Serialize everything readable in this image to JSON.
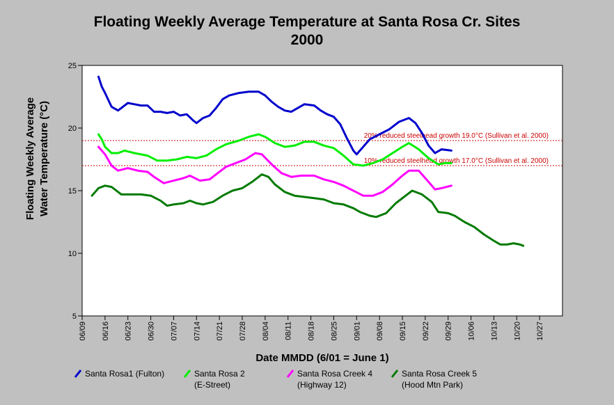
{
  "chart_data": {
    "type": "line",
    "title": "Floating Weekly Average Temperature at Santa Rosa Cr. Sites",
    "subtitle": "2000",
    "xlabel": "Date MMDD (6/01 = June 1)",
    "ylabel": [
      "Floating Weekly Average",
      "Water Temperature (°C)"
    ],
    "ylim": [
      5,
      25
    ],
    "xlim": [
      "06/09",
      "10/27"
    ],
    "yticks": [
      5,
      10,
      15,
      20,
      25
    ],
    "x_tick_labels": [
      "06/09",
      "06/16",
      "06/23",
      "06/30",
      "07/07",
      "07/14",
      "07/21",
      "07/28",
      "08/04",
      "08/11",
      "08/18",
      "08/25",
      "09/01",
      "09/08",
      "09/15",
      "09/22",
      "09/29",
      "10/06",
      "10/13",
      "10/20",
      "10/27"
    ],
    "grid": false,
    "legend_position": "bottom",
    "reference_lines": [
      {
        "y": 19.0,
        "label": "20% reduced steelhead growth 19.0°C (Sullivan et al. 2000)",
        "color": "#cc0000"
      },
      {
        "y": 17.0,
        "label": "10% reduced steelhead growth 17.0°C (Sullivan et al. 2000)",
        "color": "#cc0000"
      }
    ],
    "series": [
      {
        "name": "Santa Rosa1 (Fulton)",
        "color": "#0000cc",
        "points": [
          [
            "06/14",
            24.1
          ],
          [
            "06/15",
            23.3
          ],
          [
            "06/16",
            22.8
          ],
          [
            "06/18",
            21.7
          ],
          [
            "06/20",
            21.4
          ],
          [
            "06/21",
            21.6
          ],
          [
            "06/23",
            22.0
          ],
          [
            "06/25",
            21.9
          ],
          [
            "06/27",
            21.8
          ],
          [
            "06/29",
            21.8
          ],
          [
            "07/01",
            21.3
          ],
          [
            "07/03",
            21.3
          ],
          [
            "07/05",
            21.2
          ],
          [
            "07/07",
            21.3
          ],
          [
            "07/09",
            21.0
          ],
          [
            "07/11",
            21.1
          ],
          [
            "07/13",
            20.6
          ],
          [
            "07/14",
            20.4
          ],
          [
            "07/16",
            20.8
          ],
          [
            "07/18",
            21.0
          ],
          [
            "07/20",
            21.6
          ],
          [
            "07/22",
            22.3
          ],
          [
            "07/24",
            22.6
          ],
          [
            "07/27",
            22.8
          ],
          [
            "07/30",
            22.9
          ],
          [
            "08/02",
            22.9
          ],
          [
            "08/04",
            22.6
          ],
          [
            "08/06",
            22.1
          ],
          [
            "08/08",
            21.7
          ],
          [
            "08/10",
            21.4
          ],
          [
            "08/12",
            21.3
          ],
          [
            "08/14",
            21.6
          ],
          [
            "08/16",
            21.9
          ],
          [
            "08/19",
            21.8
          ],
          [
            "08/21",
            21.4
          ],
          [
            "08/23",
            21.1
          ],
          [
            "08/25",
            20.9
          ],
          [
            "08/27",
            20.3
          ],
          [
            "08/29",
            19.2
          ],
          [
            "08/31",
            18.2
          ],
          [
            "09/01",
            17.9
          ],
          [
            "09/03",
            18.5
          ],
          [
            "09/05",
            19.1
          ],
          [
            "09/08",
            19.5
          ],
          [
            "09/11",
            19.9
          ],
          [
            "09/14",
            20.5
          ],
          [
            "09/17",
            20.8
          ],
          [
            "09/19",
            20.4
          ],
          [
            "09/21",
            19.6
          ],
          [
            "09/23",
            18.6
          ],
          [
            "09/25",
            18.0
          ],
          [
            "09/27",
            18.3
          ],
          [
            "09/30",
            18.2
          ]
        ]
      },
      {
        "name": "Santa Rosa 2",
        "name2": "(E-Street)",
        "color": "#00ee00",
        "points": [
          [
            "06/14",
            19.5
          ],
          [
            "06/15",
            19.1
          ],
          [
            "06/16",
            18.5
          ],
          [
            "06/18",
            18.0
          ],
          [
            "06/20",
            18.0
          ],
          [
            "06/22",
            18.2
          ],
          [
            "06/25",
            18.0
          ],
          [
            "06/29",
            17.8
          ],
          [
            "07/02",
            17.4
          ],
          [
            "07/05",
            17.4
          ],
          [
            "07/08",
            17.5
          ],
          [
            "07/11",
            17.7
          ],
          [
            "07/14",
            17.6
          ],
          [
            "07/17",
            17.8
          ],
          [
            "07/20",
            18.3
          ],
          [
            "07/23",
            18.7
          ],
          [
            "07/27",
            19.0
          ],
          [
            "07/30",
            19.3
          ],
          [
            "08/02",
            19.5
          ],
          [
            "08/04",
            19.3
          ],
          [
            "08/07",
            18.8
          ],
          [
            "08/10",
            18.5
          ],
          [
            "08/13",
            18.6
          ],
          [
            "08/16",
            18.9
          ],
          [
            "08/19",
            18.9
          ],
          [
            "08/22",
            18.6
          ],
          [
            "08/25",
            18.4
          ],
          [
            "08/28",
            17.8
          ],
          [
            "08/31",
            17.1
          ],
          [
            "09/03",
            17.0
          ],
          [
            "09/06",
            17.2
          ],
          [
            "09/09",
            17.5
          ],
          [
            "09/12",
            18.0
          ],
          [
            "09/15",
            18.5
          ],
          [
            "09/17",
            18.8
          ],
          [
            "09/20",
            18.3
          ],
          [
            "09/23",
            17.6
          ],
          [
            "09/26",
            17.1
          ],
          [
            "09/28",
            17.2
          ],
          [
            "09/30",
            17.2
          ]
        ]
      },
      {
        "name": "Santa Rosa Creek 4",
        "name2": "(Highway 12)",
        "color": "#ff00ff",
        "points": [
          [
            "06/14",
            18.5
          ],
          [
            "06/16",
            17.9
          ],
          [
            "06/18",
            17.0
          ],
          [
            "06/20",
            16.6
          ],
          [
            "06/23",
            16.8
          ],
          [
            "06/26",
            16.6
          ],
          [
            "06/29",
            16.5
          ],
          [
            "07/01",
            16.1
          ],
          [
            "07/04",
            15.6
          ],
          [
            "07/07",
            15.8
          ],
          [
            "07/10",
            16.0
          ],
          [
            "07/12",
            16.2
          ],
          [
            "07/15",
            15.8
          ],
          [
            "07/18",
            15.9
          ],
          [
            "07/20",
            16.3
          ],
          [
            "07/23",
            16.9
          ],
          [
            "07/26",
            17.2
          ],
          [
            "07/29",
            17.5
          ],
          [
            "08/01",
            18.0
          ],
          [
            "08/03",
            17.9
          ],
          [
            "08/06",
            17.1
          ],
          [
            "08/09",
            16.4
          ],
          [
            "08/12",
            16.1
          ],
          [
            "08/15",
            16.2
          ],
          [
            "08/19",
            16.2
          ],
          [
            "08/22",
            15.9
          ],
          [
            "08/25",
            15.7
          ],
          [
            "08/28",
            15.4
          ],
          [
            "08/31",
            15.0
          ],
          [
            "09/03",
            14.6
          ],
          [
            "09/06",
            14.6
          ],
          [
            "09/09",
            14.9
          ],
          [
            "09/12",
            15.5
          ],
          [
            "09/15",
            16.2
          ],
          [
            "09/17",
            16.6
          ],
          [
            "09/20",
            16.6
          ],
          [
            "09/23",
            15.7
          ],
          [
            "09/25",
            15.1
          ],
          [
            "09/27",
            15.2
          ],
          [
            "09/30",
            15.4
          ]
        ]
      },
      {
        "name": "Santa Rosa Creek 5",
        "name2": "(Hood Mtn Park)",
        "color": "#007a00",
        "points": [
          [
            "06/12",
            14.6
          ],
          [
            "06/14",
            15.2
          ],
          [
            "06/16",
            15.4
          ],
          [
            "06/18",
            15.3
          ],
          [
            "06/21",
            14.7
          ],
          [
            "06/24",
            14.7
          ],
          [
            "06/27",
            14.7
          ],
          [
            "06/30",
            14.6
          ],
          [
            "07/03",
            14.2
          ],
          [
            "07/05",
            13.8
          ],
          [
            "07/07",
            13.9
          ],
          [
            "07/10",
            14.0
          ],
          [
            "07/12",
            14.2
          ],
          [
            "07/14",
            14.0
          ],
          [
            "07/16",
            13.9
          ],
          [
            "07/19",
            14.1
          ],
          [
            "07/22",
            14.6
          ],
          [
            "07/25",
            15.0
          ],
          [
            "07/28",
            15.2
          ],
          [
            "07/31",
            15.7
          ],
          [
            "08/03",
            16.3
          ],
          [
            "08/05",
            16.1
          ],
          [
            "08/07",
            15.5
          ],
          [
            "08/10",
            14.9
          ],
          [
            "08/13",
            14.6
          ],
          [
            "08/16",
            14.5
          ],
          [
            "08/19",
            14.4
          ],
          [
            "08/22",
            14.3
          ],
          [
            "08/25",
            14.0
          ],
          [
            "08/28",
            13.9
          ],
          [
            "08/31",
            13.6
          ],
          [
            "09/02",
            13.3
          ],
          [
            "09/05",
            13.0
          ],
          [
            "09/07",
            12.9
          ],
          [
            "09/10",
            13.2
          ],
          [
            "09/13",
            14.0
          ],
          [
            "09/16",
            14.6
          ],
          [
            "09/18",
            15.0
          ],
          [
            "09/21",
            14.7
          ],
          [
            "09/24",
            14.1
          ],
          [
            "09/26",
            13.3
          ],
          [
            "09/29",
            13.2
          ],
          [
            "10/01",
            13.0
          ],
          [
            "10/04",
            12.5
          ],
          [
            "10/07",
            12.1
          ],
          [
            "10/10",
            11.5
          ],
          [
            "10/13",
            11.0
          ],
          [
            "10/15",
            10.7
          ],
          [
            "10/17",
            10.7
          ],
          [
            "10/19",
            10.8
          ],
          [
            "10/21",
            10.7
          ],
          [
            "10/22",
            10.6
          ]
        ]
      }
    ]
  }
}
